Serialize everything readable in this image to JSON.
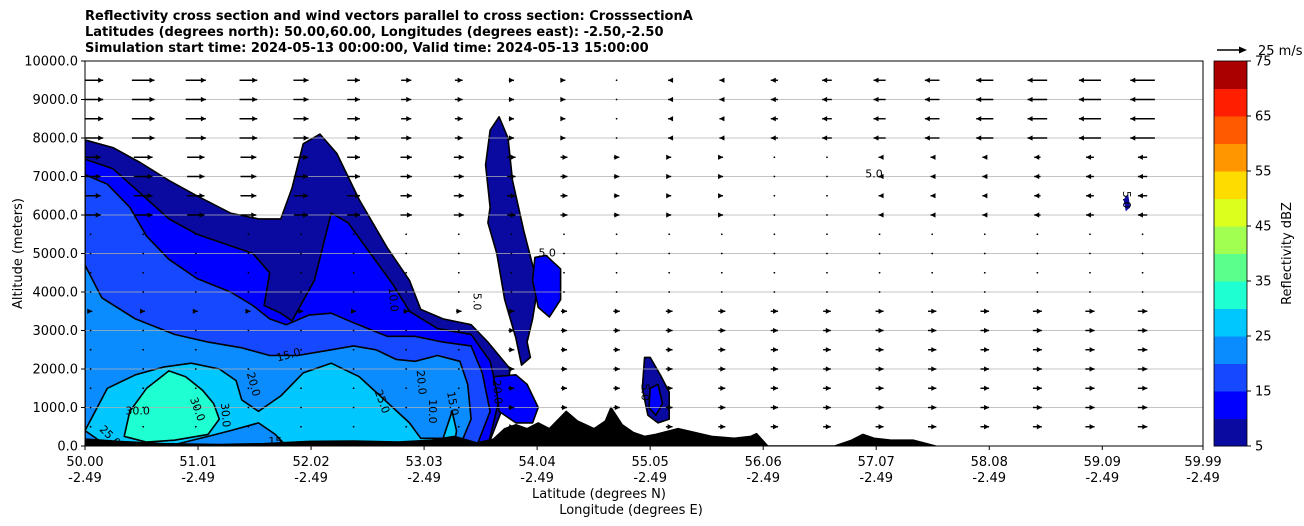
{
  "chart_data": {
    "type": "heatmap",
    "title_lines": [
      "Reflectivity cross section and wind vectors parallel to cross section: CrosssectionA",
      "Latitudes (degrees north): 50.00,60.00, Longitudes (degrees east): -2.50,-2.50",
      "Simulation start time: 2024-05-13 00:00:00, Valid time: 2024-05-13 15:00:00"
    ],
    "xlabel_lines": [
      "Latitude (degrees N)",
      "Longitude (degrees E)"
    ],
    "ylabel": "Altitude (meters)",
    "xlim": [
      50.0,
      59.99
    ],
    "ylim": [
      0,
      10000
    ],
    "x_ticks": [
      {
        "lat": "50.00",
        "lon": "-2.49",
        "v": 50.0
      },
      {
        "lat": "51.01",
        "lon": "-2.49",
        "v": 51.01
      },
      {
        "lat": "52.02",
        "lon": "-2.49",
        "v": 52.02
      },
      {
        "lat": "53.03",
        "lon": "-2.49",
        "v": 53.03
      },
      {
        "lat": "54.04",
        "lon": "-2.49",
        "v": 54.04
      },
      {
        "lat": "55.05",
        "lon": "-2.49",
        "v": 55.05
      },
      {
        "lat": "56.06",
        "lon": "-2.49",
        "v": 56.06
      },
      {
        "lat": "57.07",
        "lon": "-2.49",
        "v": 57.07
      },
      {
        "lat": "58.08",
        "lon": "-2.49",
        "v": 58.08
      },
      {
        "lat": "59.09",
        "lon": "-2.49",
        "v": 59.09
      },
      {
        "lat": "59.99",
        "lon": "-2.49",
        "v": 59.99
      }
    ],
    "y_ticks": [
      "0.0",
      "1000.0",
      "2000.0",
      "3000.0",
      "4000.0",
      "5000.0",
      "6000.0",
      "7000.0",
      "8000.0",
      "9000.0",
      "10000.0"
    ],
    "grid": "horizontal",
    "colorbar": {
      "label": "Reflectivity dBZ",
      "levels": [
        5,
        10,
        15,
        20,
        25,
        30,
        35,
        40,
        45,
        50,
        55,
        60,
        65,
        70,
        75
      ],
      "tick_labels": [
        "5",
        "15",
        "25",
        "35",
        "45",
        "55",
        "65",
        "75"
      ],
      "colors": [
        "#0a0aa0",
        "#0000ff",
        "#1648ff",
        "#0a8cff",
        "#00c8ff",
        "#1effd2",
        "#5aff8c",
        "#a0ff50",
        "#dcff1e",
        "#ffdc00",
        "#ff9600",
        "#ff5a00",
        "#ff1e00",
        "#aa0000"
      ]
    },
    "wind_reference": {
      "label": "25 m/s",
      "speed": 25
    },
    "contour_labels": [
      {
        "text": "25.0",
        "x": 50.22,
        "y": 250,
        "rot": 45
      },
      {
        "text": "30.0",
        "x": 50.47,
        "y": 900,
        "rot": 0
      },
      {
        "text": "30.0",
        "x": 51.0,
        "y": 950,
        "rot": 70
      },
      {
        "text": "30.0",
        "x": 51.25,
        "y": 800,
        "rot": 85
      },
      {
        "text": "20.0",
        "x": 51.5,
        "y": 1600,
        "rot": 75
      },
      {
        "text": "15.0",
        "x": 51.82,
        "y": 2350,
        "rot": -15
      },
      {
        "text": "15",
        "x": 51.7,
        "y": 100,
        "rot": 0
      },
      {
        "text": "25.0",
        "x": 52.65,
        "y": 1150,
        "rot": 70
      },
      {
        "text": "20.0",
        "x": 53.0,
        "y": 1650,
        "rot": 85
      },
      {
        "text": "10.0",
        "x": 52.75,
        "y": 3800,
        "rot": 85
      },
      {
        "text": "10.0",
        "x": 53.1,
        "y": 900,
        "rot": 90
      },
      {
        "text": "15.0",
        "x": 53.28,
        "y": 1100,
        "rot": 80
      },
      {
        "text": "20.0",
        "x": 53.68,
        "y": 1400,
        "rot": 85
      },
      {
        "text": "5.0",
        "x": 53.5,
        "y": 3750,
        "rot": 90
      },
      {
        "text": "5.0",
        "x": 54.13,
        "y": 5000,
        "rot": 0
      },
      {
        "text": "5.0",
        "x": 55.0,
        "y": 1400,
        "rot": 90
      },
      {
        "text": "5.0",
        "x": 57.05,
        "y": 7050,
        "rot": 0
      },
      {
        "text": "5.0",
        "x": 59.3,
        "y": 6400,
        "rot": 90
      }
    ]
  }
}
